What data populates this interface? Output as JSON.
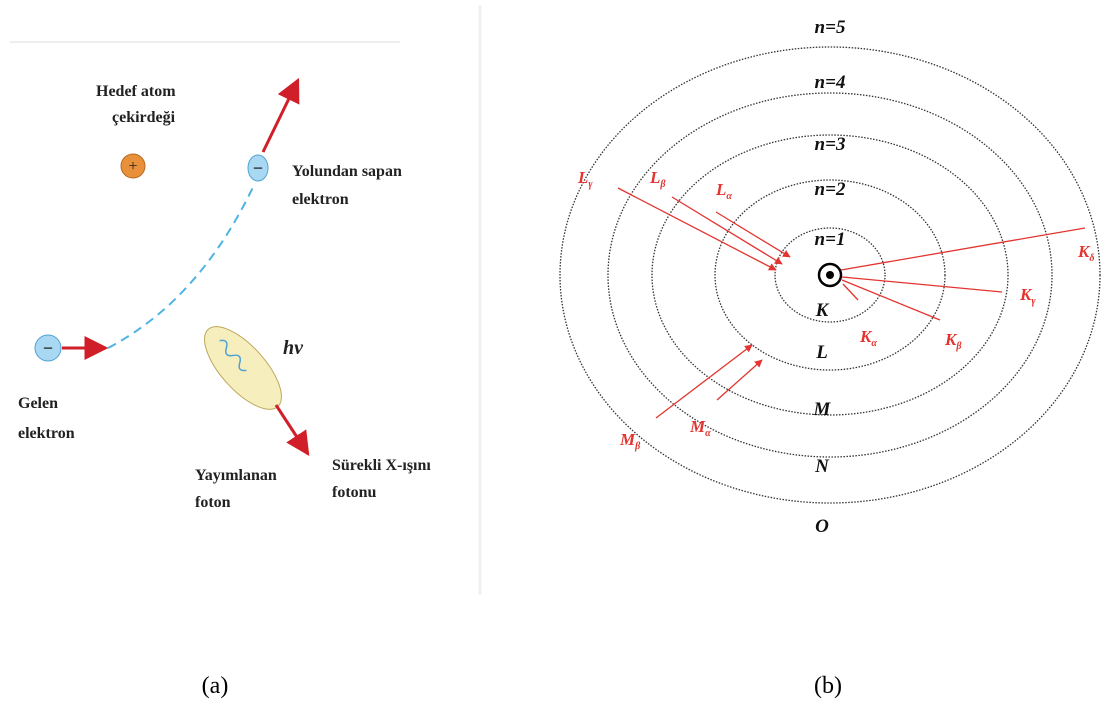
{
  "panel_a": {
    "nucleus_label": [
      "Hedef atom",
      "çekirdeği"
    ],
    "nucleus_sign": "+",
    "scattered_sign": "−",
    "scattered_label": [
      "Yolundan sapan",
      "elektron"
    ],
    "incident_sign": "−",
    "incident_label": [
      "Gelen",
      "elektron"
    ],
    "photon_symbol": "hν",
    "photon_label": [
      "Yayımlanan",
      "foton"
    ],
    "xray_label": [
      "Sürekli X-ışını",
      "fotonu"
    ],
    "caption": "(a)"
  },
  "panel_b": {
    "levels": [
      "n=1",
      "n=2",
      "n=3",
      "n=4",
      "n=5"
    ],
    "shells": [
      "K",
      "L",
      "M",
      "N",
      "O"
    ],
    "transitions": [
      {
        "letter": "L",
        "sub": "γ"
      },
      {
        "letter": "L",
        "sub": "β"
      },
      {
        "letter": "L",
        "sub": "α"
      },
      {
        "letter": "K",
        "sub": "δ"
      },
      {
        "letter": "K",
        "sub": "γ"
      },
      {
        "letter": "K",
        "sub": "β"
      },
      {
        "letter": "K",
        "sub": "α"
      },
      {
        "letter": "M",
        "sub": "β"
      },
      {
        "letter": "M",
        "sub": "α"
      }
    ],
    "caption": "(b)"
  }
}
